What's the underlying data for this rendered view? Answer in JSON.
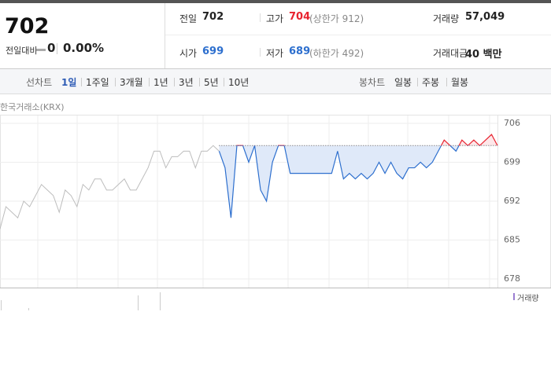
{
  "header": {
    "price": "702",
    "change_label": "전일대비",
    "change": "0",
    "change_rate": "0.00%"
  },
  "stats": [
    [
      {
        "label": "전일",
        "value": "702"
      },
      {
        "label": "고가",
        "value": "704",
        "note": "(상한가 912)"
      },
      {
        "label": "거래량",
        "value": "57,049"
      }
    ],
    [
      {
        "label": "시가",
        "value": "699"
      },
      {
        "label": "저가",
        "value": "689",
        "note": "(하한가 492)"
      },
      {
        "label": "거래대금",
        "value": "40 백만"
      }
    ]
  ],
  "tabs": {
    "line_label": "선차트",
    "line": [
      "1일",
      "1주일",
      "3개월",
      "1년",
      "3년",
      "5년",
      "10년"
    ],
    "candle_label": "봉차트",
    "candle": [
      "일봉",
      "주봉",
      "월봉"
    ]
  },
  "source": "한국거래소(KRX)",
  "volume_label": "거래량",
  "chart_data": {
    "type": "line",
    "baseline": 702,
    "up_color": "#e8232f",
    "down_color": "#2d6fce",
    "ylim": [
      678,
      706
    ],
    "yticks": [
      678,
      685,
      692,
      699,
      706
    ],
    "grid": true,
    "series": [
      {
        "color": "#bdbdbd",
        "values": [
          687,
          691,
          690,
          689,
          692,
          691,
          693,
          695,
          694,
          693,
          690,
          694,
          693,
          691,
          695,
          694,
          696,
          696,
          694,
          694,
          695,
          696,
          694,
          694,
          696,
          698,
          701,
          701,
          698,
          700,
          700,
          701,
          701,
          698,
          701,
          701,
          702,
          701,
          null,
          null,
          null,
          null,
          null,
          null,
          null,
          null,
          null,
          null,
          null,
          null,
          null,
          null,
          null,
          null,
          null,
          null,
          null,
          null,
          null,
          null,
          null,
          null,
          null,
          null,
          null,
          null,
          null,
          null,
          null,
          null,
          null,
          null,
          null,
          null,
          null,
          null,
          null,
          null,
          null,
          null,
          null,
          null,
          null,
          null,
          null
        ]
      },
      {
        "color": "#2d6fce",
        "values": [
          null,
          null,
          null,
          null,
          null,
          null,
          null,
          null,
          null,
          null,
          null,
          null,
          null,
          null,
          null,
          null,
          null,
          null,
          null,
          null,
          null,
          null,
          null,
          null,
          null,
          null,
          null,
          null,
          null,
          null,
          null,
          null,
          null,
          null,
          null,
          null,
          null,
          701,
          698,
          689,
          702,
          702,
          699,
          702,
          694,
          692,
          699,
          702,
          702,
          697,
          697,
          697,
          697,
          697,
          697,
          697,
          697,
          701,
          696,
          697,
          696,
          697,
          696,
          697,
          699,
          697,
          699,
          697,
          696,
          698,
          698,
          699,
          698,
          699,
          701,
          703,
          702,
          701,
          703,
          702,
          703,
          702,
          703,
          704,
          702
        ]
      }
    ]
  }
}
